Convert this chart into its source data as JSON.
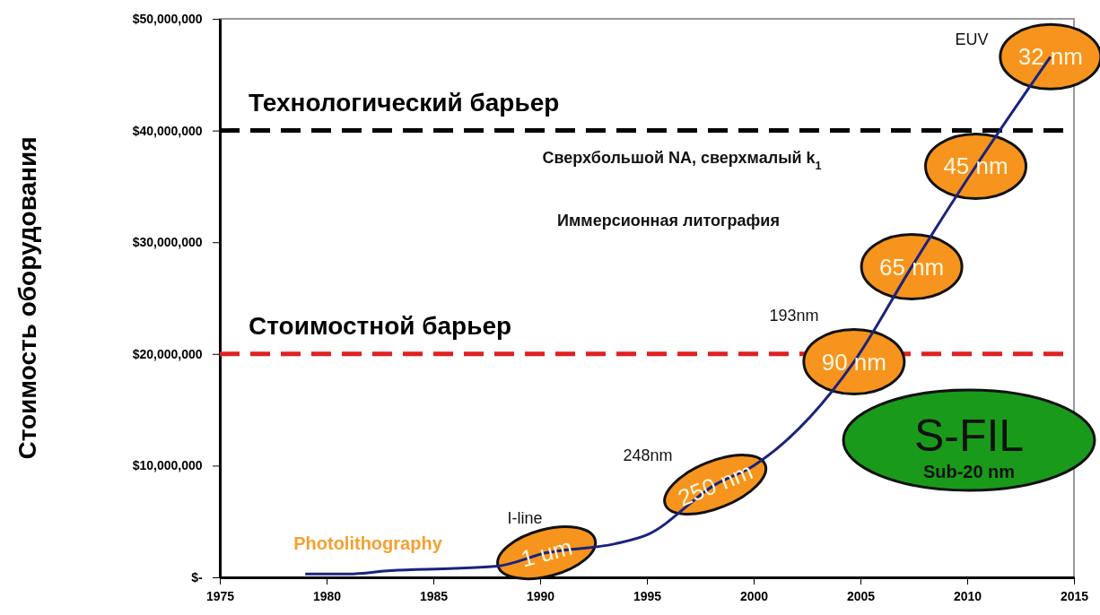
{
  "chart_data": {
    "type": "line",
    "ylabel": "Стоимость оборудования",
    "xlim": [
      1975,
      2015
    ],
    "xticks": [
      1975,
      1980,
      1985,
      1990,
      1995,
      2000,
      2005,
      2010,
      2015
    ],
    "ylim": [
      0,
      50000000
    ],
    "yticks": [
      {
        "value": 0,
        "label": "$-"
      },
      {
        "value": 10000000,
        "label": "$10,000,000"
      },
      {
        "value": 20000000,
        "label": "$20,000,000"
      },
      {
        "value": 30000000,
        "label": "$30,000,000"
      },
      {
        "value": 40000000,
        "label": "$40,000,000"
      },
      {
        "value": 50000000,
        "label": "$50,000,000"
      }
    ],
    "grid": false,
    "series": [
      {
        "color": "#1a237e",
        "marker": "none",
        "line_style": "solid",
        "x": [
          1979,
          1981,
          1983,
          1986,
          1988,
          1990.3,
          1993.5,
          1995,
          1998.2,
          2000,
          2004.7,
          2007.4,
          2010.4,
          2013.9
        ],
        "values": [
          300000,
          300000,
          600000,
          800000,
          1000000,
          2200000,
          3000000,
          3800000,
          8300000,
          10000000,
          19300000,
          27800000,
          36800000,
          46600000
        ]
      }
    ],
    "ref_lines": [
      {
        "axis": "y",
        "value": 40000000,
        "label": "Технологический барьер",
        "color": "#000000",
        "line_style": "dashed"
      },
      {
        "axis": "y",
        "value": 20000000,
        "label": "Стоимостной барьер",
        "color": "#e02020",
        "line_style": "dashed"
      }
    ],
    "annotations": [
      {
        "text": "1 um",
        "x": 1990.3,
        "y": 2200000
      },
      {
        "text": "250 nm",
        "x": 1998.2,
        "y": 8300000
      },
      {
        "text": "90 nm",
        "x": 2004.7,
        "y": 19300000
      },
      {
        "text": "65 nm",
        "x": 2007.4,
        "y": 27800000
      },
      {
        "text": "45 nm",
        "x": 2010.4,
        "y": 36800000
      },
      {
        "text": "32 nm",
        "x": 2013.9,
        "y": 46600000
      },
      "EUV",
      "193nm",
      "248nm",
      "I-line",
      "Photolithography",
      "S-FIL",
      "Sub-20 nm",
      "Сверхбольшой NA, сверхмалый k$_{1}$",
      "Иммерсионная литография"
    ]
  }
}
